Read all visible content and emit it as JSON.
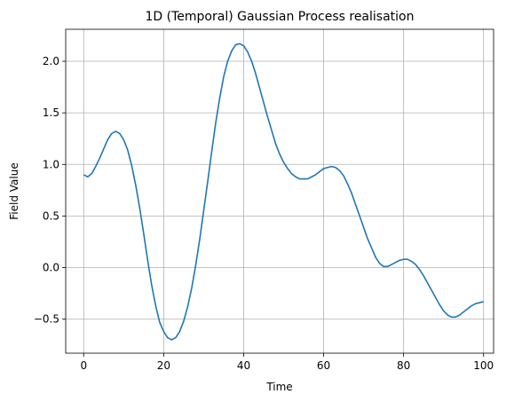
{
  "chart_data": {
    "type": "line",
    "title": "1D (Temporal) Gaussian Process realisation",
    "xlabel": "Time",
    "ylabel": "Field Value",
    "xlim": [
      -4.5,
      102.5
    ],
    "ylim": [
      -0.83,
      2.31
    ],
    "xticks": [
      0,
      20,
      40,
      60,
      80,
      100
    ],
    "yticks": [
      -0.5,
      0.0,
      0.5,
      1.0,
      1.5,
      2.0
    ],
    "xtick_labels": [
      "0",
      "20",
      "40",
      "60",
      "80",
      "100"
    ],
    "ytick_labels": [
      "−0.5",
      "0.0",
      "0.5",
      "1.0",
      "1.5",
      "2.0"
    ],
    "grid": true,
    "color": "#1f77b4",
    "series": [
      {
        "x": [
          0,
          1,
          2,
          3,
          4,
          5,
          6,
          7,
          8,
          9,
          10,
          11,
          12,
          13,
          14,
          15,
          16,
          17,
          18,
          19,
          20,
          21,
          22,
          23,
          24,
          25,
          26,
          27,
          28,
          29,
          30,
          31,
          32,
          33,
          34,
          35,
          36,
          37,
          38,
          39,
          40,
          41,
          42,
          43,
          44,
          45,
          46,
          47,
          48,
          49,
          50,
          51,
          52,
          53,
          54,
          55,
          56,
          57,
          58,
          59,
          60,
          61,
          62,
          63,
          64,
          65,
          66,
          67,
          68,
          69,
          70,
          71,
          72,
          73,
          74,
          75,
          76,
          77,
          78,
          79,
          80,
          81,
          82,
          83,
          84,
          85,
          86,
          87,
          88,
          89,
          90,
          91,
          92,
          93,
          94,
          95,
          96,
          97,
          98,
          99,
          100
        ],
        "y": [
          0.9,
          0.88,
          0.91,
          0.98,
          1.06,
          1.15,
          1.24,
          1.3,
          1.32,
          1.3,
          1.24,
          1.14,
          0.99,
          0.8,
          0.58,
          0.33,
          0.07,
          -0.17,
          -0.37,
          -0.53,
          -0.62,
          -0.68,
          -0.7,
          -0.68,
          -0.62,
          -0.52,
          -0.38,
          -0.2,
          0.02,
          0.27,
          0.55,
          0.83,
          1.12,
          1.4,
          1.64,
          1.85,
          2.0,
          2.1,
          2.16,
          2.17,
          2.15,
          2.09,
          2.0,
          1.88,
          1.74,
          1.6,
          1.46,
          1.33,
          1.2,
          1.1,
          1.02,
          0.96,
          0.91,
          0.88,
          0.86,
          0.86,
          0.86,
          0.88,
          0.9,
          0.93,
          0.96,
          0.97,
          0.98,
          0.97,
          0.94,
          0.89,
          0.81,
          0.72,
          0.61,
          0.5,
          0.39,
          0.28,
          0.19,
          0.1,
          0.04,
          0.01,
          0.01,
          0.03,
          0.05,
          0.07,
          0.08,
          0.08,
          0.06,
          0.03,
          -0.02,
          -0.08,
          -0.15,
          -0.22,
          -0.29,
          -0.36,
          -0.42,
          -0.46,
          -0.48,
          -0.48,
          -0.46,
          -0.43,
          -0.4,
          -0.37,
          -0.35,
          -0.34,
          -0.33
        ]
      }
    ]
  }
}
